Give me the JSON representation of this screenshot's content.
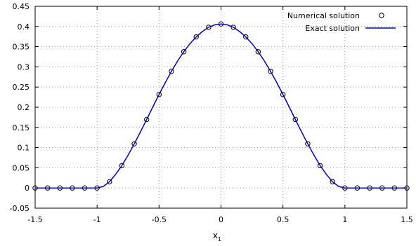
{
  "chart_data": {
    "type": "line",
    "xlabel": "x",
    "xlabel_sub": "1",
    "ylabel": "",
    "title": "",
    "xlim": [
      -1.5,
      1.5
    ],
    "ylim": [
      -0.05,
      0.45
    ],
    "x_ticks": [
      -1.5,
      -1,
      -0.5,
      0,
      0.5,
      1,
      1.5
    ],
    "x_tick_labels": [
      "-1.5",
      "-1",
      "-0.5",
      "0",
      "0.5",
      "1",
      "1.5"
    ],
    "y_ticks": [
      -0.05,
      0,
      0.05,
      0.1,
      0.15,
      0.2,
      0.25,
      0.3,
      0.35,
      0.4,
      0.45
    ],
    "y_tick_labels": [
      "-0.05",
      "0",
      "0.05",
      "0.1",
      "0.15",
      "0.2",
      "0.25",
      "0.3",
      "0.35",
      "0.4",
      "0.45"
    ],
    "grid": true,
    "legend_position": "top-right",
    "series": [
      {
        "name": "Numerical solution",
        "style": "markers",
        "marker": "open-circle",
        "color": "#000000",
        "x": [
          -1.5,
          -1.4,
          -1.3,
          -1.2,
          -1.1,
          -1.0,
          -0.9,
          -0.8,
          -0.7,
          -0.6,
          -0.5,
          -0.4,
          -0.3,
          -0.2,
          -0.1,
          0.0,
          0.1,
          0.2,
          0.3,
          0.4,
          0.5,
          0.6,
          0.7,
          0.8,
          0.9,
          1.0,
          1.1,
          1.2,
          1.3,
          1.4,
          1.5
        ],
        "y": [
          0,
          0,
          0,
          0,
          0,
          0,
          0.0155,
          0.0553,
          0.1094,
          0.1697,
          0.2315,
          0.2889,
          0.3376,
          0.3742,
          0.3981,
          0.4063,
          0.3981,
          0.3742,
          0.3376,
          0.2889,
          0.2315,
          0.1697,
          0.1094,
          0.0553,
          0.0155,
          0,
          0,
          0,
          0,
          0,
          0
        ]
      },
      {
        "name": "Exact solution",
        "style": "line",
        "color": "#0000cc",
        "x": [
          -1.5,
          -1.4,
          -1.3,
          -1.2,
          -1.1,
          -1.0,
          -0.95,
          -0.9,
          -0.85,
          -0.8,
          -0.75,
          -0.7,
          -0.65,
          -0.6,
          -0.55,
          -0.5,
          -0.45,
          -0.4,
          -0.35,
          -0.3,
          -0.25,
          -0.2,
          -0.15,
          -0.1,
          -0.05,
          0.0,
          0.05,
          0.1,
          0.15,
          0.2,
          0.25,
          0.3,
          0.35,
          0.4,
          0.45,
          0.5,
          0.55,
          0.6,
          0.65,
          0.7,
          0.75,
          0.8,
          0.85,
          0.9,
          0.95,
          1.0,
          1.1,
          1.2,
          1.3,
          1.4,
          1.5
        ],
        "y": [
          0,
          0,
          0,
          0,
          0,
          0,
          0.0039,
          0.0155,
          0.0339,
          0.0553,
          0.0813,
          0.1094,
          0.1391,
          0.1697,
          0.2008,
          0.2315,
          0.261,
          0.2889,
          0.3145,
          0.3376,
          0.3577,
          0.3742,
          0.3877,
          0.3981,
          0.4042,
          0.4063,
          0.4042,
          0.3981,
          0.3877,
          0.3742,
          0.3577,
          0.3376,
          0.3145,
          0.2889,
          0.261,
          0.2315,
          0.2008,
          0.1697,
          0.1391,
          0.1094,
          0.0813,
          0.0553,
          0.0339,
          0.0155,
          0.0039,
          0,
          0,
          0,
          0,
          0,
          0
        ]
      }
    ]
  }
}
